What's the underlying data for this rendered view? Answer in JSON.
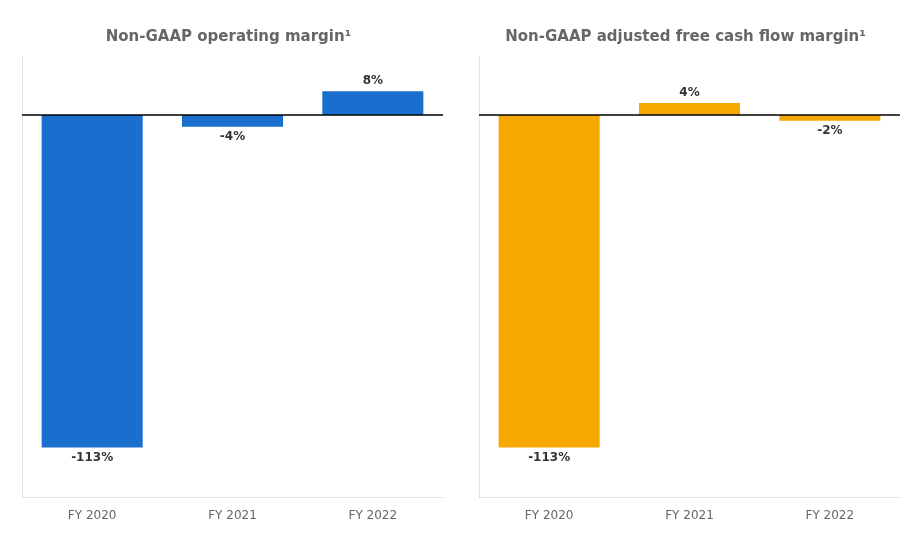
{
  "chart_data": [
    {
      "type": "bar",
      "title": "Non-GAAP operating margin¹",
      "categories": [
        "FY 2020",
        "FY 2021",
        "FY 2022"
      ],
      "values": [
        -113,
        -4,
        8
      ],
      "value_labels": [
        "-113%",
        "-4%",
        "8%"
      ],
      "color": "#1a6fce",
      "ylim": [
        -130,
        20
      ],
      "data_labels": true,
      "tick_labels": "x",
      "grid": false
    },
    {
      "type": "bar",
      "title": "Non-GAAP adjusted free cash flow margin¹",
      "categories": [
        "FY 2020",
        "FY 2021",
        "FY 2022"
      ],
      "values": [
        -113,
        4,
        -2
      ],
      "value_labels": [
        "-113%",
        "4%",
        "-2%"
      ],
      "color": "#f5a800",
      "ylim": [
        -130,
        20
      ],
      "data_labels": true,
      "tick_labels": "x",
      "grid": false
    }
  ]
}
